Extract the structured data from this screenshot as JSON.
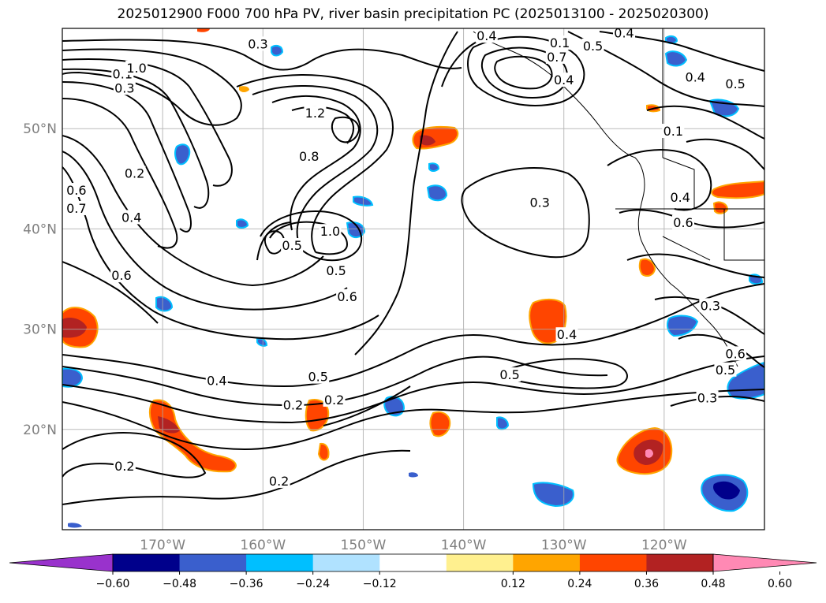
{
  "title": "2025012900 F000 700 hPa PV, river basin precipitation PC (2025013100 - 2025020300)",
  "map": {
    "lon_range": [
      -180,
      -110
    ],
    "lat_range": [
      10,
      60
    ],
    "lat_ticks": [
      {
        "value": 50,
        "label": "50°N"
      },
      {
        "value": 40,
        "label": "40°N"
      },
      {
        "value": 30,
        "label": "30°N"
      },
      {
        "value": 20,
        "label": "20°N"
      }
    ],
    "lon_ticks": [
      {
        "value": -170,
        "label": "170°W"
      },
      {
        "value": -160,
        "label": "160°W"
      },
      {
        "value": -150,
        "label": "150°W"
      },
      {
        "value": -140,
        "label": "140°W"
      },
      {
        "value": -130,
        "label": "130°W"
      },
      {
        "value": -120,
        "label": "120°W"
      }
    ],
    "grid": true
  },
  "contour_labels": [
    {
      "lon": -173.8,
      "lat": 54.0,
      "text": "0.3"
    },
    {
      "lon": -174.0,
      "lat": 55.4,
      "text": "0.1"
    },
    {
      "lon": -172.6,
      "lat": 56.0,
      "text": "1.0"
    },
    {
      "lon": -178.6,
      "lat": 43.8,
      "text": "0.6"
    },
    {
      "lon": -178.6,
      "lat": 42.0,
      "text": "0.7"
    },
    {
      "lon": -172.8,
      "lat": 45.5,
      "text": "0.2"
    },
    {
      "lon": -173.1,
      "lat": 41.1,
      "text": "0.4"
    },
    {
      "lon": -174.1,
      "lat": 35.3,
      "text": "0.6"
    },
    {
      "lon": -160.5,
      "lat": 58.4,
      "text": "0.3"
    },
    {
      "lon": -154.8,
      "lat": 51.5,
      "text": "1.2"
    },
    {
      "lon": -155.4,
      "lat": 47.2,
      "text": "0.8"
    },
    {
      "lon": -157.1,
      "lat": 38.3,
      "text": "0.5"
    },
    {
      "lon": -153.3,
      "lat": 39.7,
      "text": "1.0"
    },
    {
      "lon": -152.7,
      "lat": 35.8,
      "text": "0.5"
    },
    {
      "lon": -151.6,
      "lat": 33.2,
      "text": "0.6"
    },
    {
      "lon": -164.6,
      "lat": 24.8,
      "text": "0.4"
    },
    {
      "lon": -154.5,
      "lat": 25.2,
      "text": "0.5"
    },
    {
      "lon": -157.0,
      "lat": 22.4,
      "text": "0.2"
    },
    {
      "lon": -152.9,
      "lat": 22.9,
      "text": "0.2"
    },
    {
      "lon": -173.8,
      "lat": 16.3,
      "text": "0.2"
    },
    {
      "lon": -158.4,
      "lat": 14.8,
      "text": "0.2"
    },
    {
      "lon": -130.7,
      "lat": 57.1,
      "text": "0.7"
    },
    {
      "lon": -130.0,
      "lat": 54.8,
      "text": "0.4"
    },
    {
      "lon": -130.4,
      "lat": 58.5,
      "text": "0.1"
    },
    {
      "lon": -137.7,
      "lat": 59.2,
      "text": "0.4"
    },
    {
      "lon": -124.0,
      "lat": 59.5,
      "text": "0.4"
    },
    {
      "lon": -127.1,
      "lat": 58.2,
      "text": "0.5"
    },
    {
      "lon": -116.9,
      "lat": 55.1,
      "text": "0.4"
    },
    {
      "lon": -119.1,
      "lat": 49.7,
      "text": "0.1"
    },
    {
      "lon": -112.9,
      "lat": 54.4,
      "text": "0.5"
    },
    {
      "lon": -118.4,
      "lat": 43.1,
      "text": "0.4"
    },
    {
      "lon": -132.4,
      "lat": 42.6,
      "text": "0.3"
    },
    {
      "lon": -118.1,
      "lat": 40.6,
      "text": "0.6"
    },
    {
      "lon": -129.7,
      "lat": 29.4,
      "text": "0.4"
    },
    {
      "lon": -135.4,
      "lat": 25.4,
      "text": "0.5"
    },
    {
      "lon": -115.4,
      "lat": 32.3,
      "text": "0.3"
    },
    {
      "lon": -112.9,
      "lat": 27.5,
      "text": "0.6"
    },
    {
      "lon": -113.9,
      "lat": 25.9,
      "text": "0.5"
    },
    {
      "lon": -115.7,
      "lat": 23.1,
      "text": "0.3"
    }
  ],
  "colorbar": {
    "levels": [
      -0.72,
      -0.6,
      -0.48,
      -0.36,
      -0.24,
      -0.12,
      0.12,
      0.24,
      0.36,
      0.48,
      0.6,
      0.72
    ],
    "colors": [
      "#9932cc",
      "#00008b",
      "#3a5fcd",
      "#00bfff",
      "#b0e2ff",
      "#ffffff",
      "#fff08f",
      "#ffa500",
      "#ff4500",
      "#b22222",
      "#ff89b4",
      "#ff89b4"
    ],
    "tick_labels": [
      "−0.60",
      "−0.48",
      "−0.36",
      "−0.24",
      "−0.12",
      "0.12",
      "0.24",
      "0.36",
      "0.48",
      "0.60"
    ],
    "extend": "both"
  }
}
